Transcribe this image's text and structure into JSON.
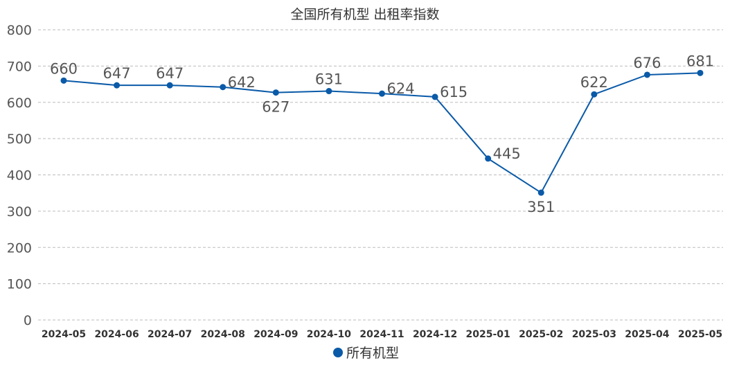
{
  "chart_data": {
    "type": "line",
    "title": "全国所有机型  出租率指数",
    "xlabel": "",
    "ylabel": "",
    "categories": [
      "2024-05",
      "2024-06",
      "2024-07",
      "2024-08",
      "2024-09",
      "2024-10",
      "2024-11",
      "2024-12",
      "2025-01",
      "2025-02",
      "2025-03",
      "2025-04",
      "2025-05"
    ],
    "series": [
      {
        "name": "所有机型",
        "values": [
          660,
          647,
          647,
          642,
          627,
          631,
          624,
          615,
          445,
          351,
          622,
          676,
          681
        ],
        "color": "#0a5aa8"
      }
    ],
    "ylim": [
      0,
      800
    ],
    "yticks": [
      0,
      100,
      200,
      300,
      400,
      500,
      600,
      700,
      800
    ],
    "grid": true,
    "legend": "bottom-center"
  }
}
